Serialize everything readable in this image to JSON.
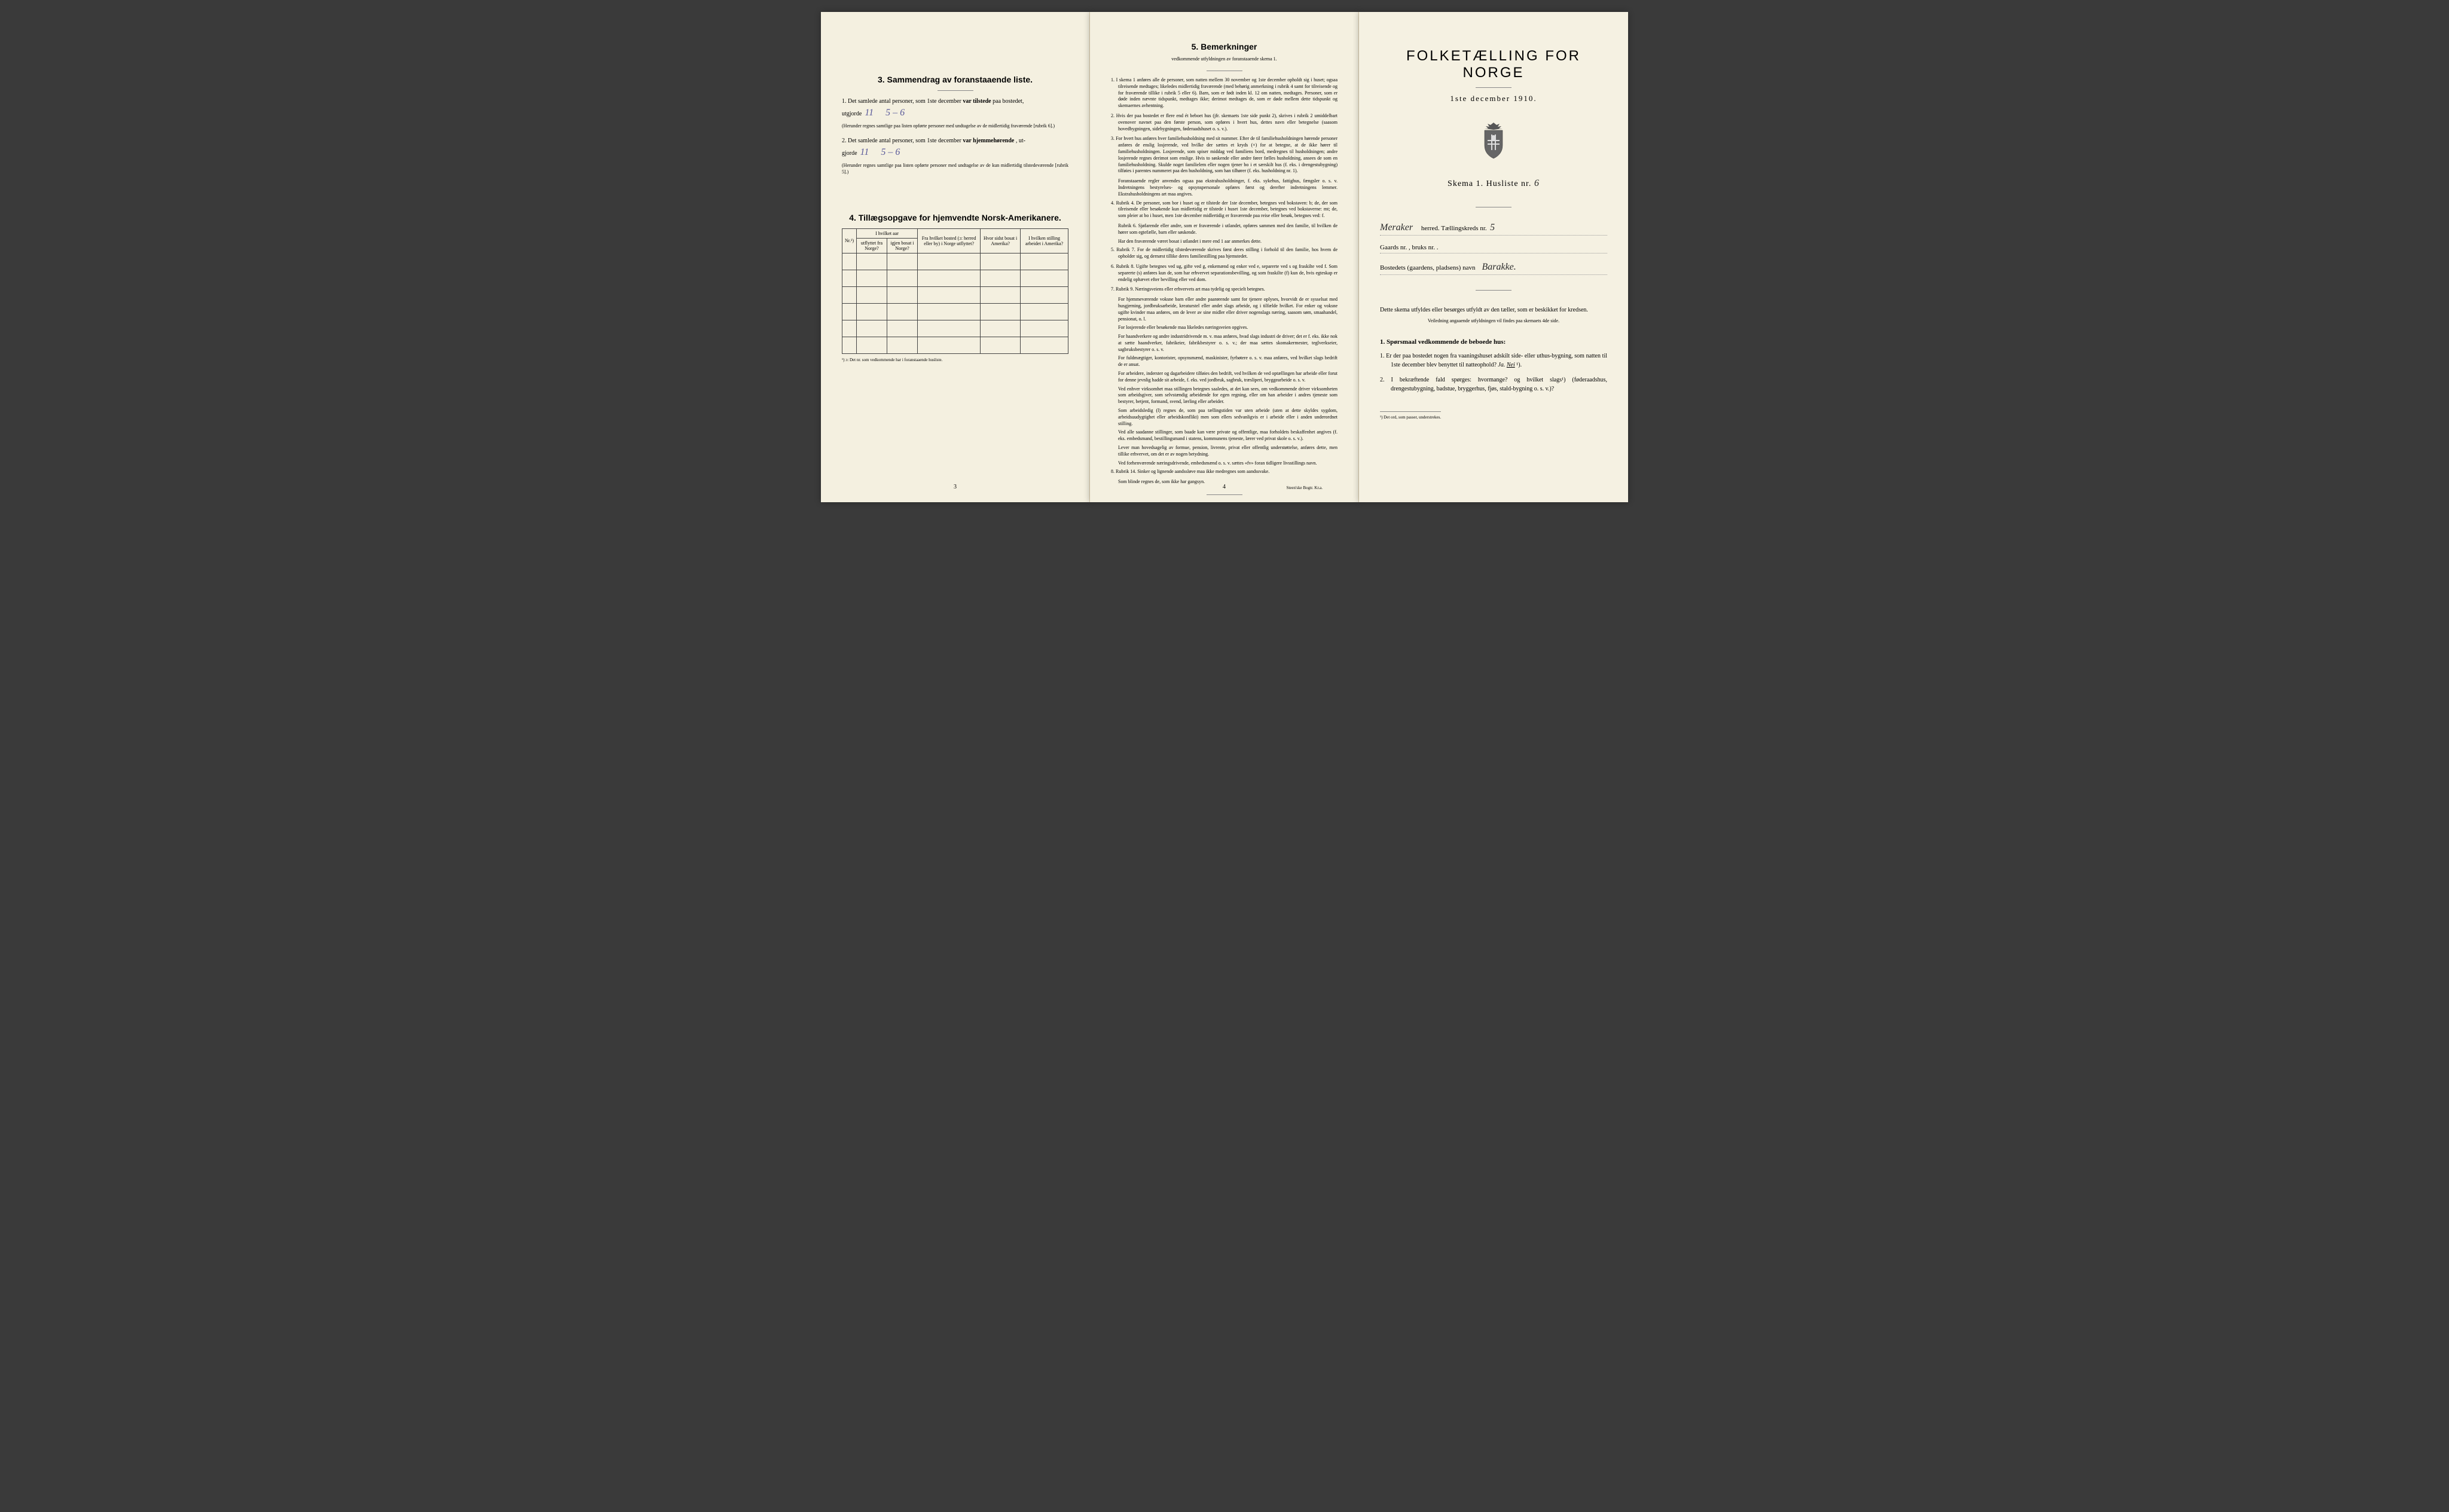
{
  "page1": {
    "section3_title": "3.  Sammendrag av foranstaaende liste.",
    "item1_pre": "1. Det samlede antal personer, som 1ste december",
    "item1_bold": "var tilstede",
    "item1_post": "paa bostedet,",
    "item1_line2": "utgjorde",
    "item1_hw1": "11",
    "item1_hw2": "5 – 6",
    "item1_fine": "(Herunder regnes samtlige paa listen opførte personer med undtagelse av de midlertidig fraværende [rubrik 6].)",
    "item2_pre": "2. Det samlede antal personer, som 1ste december",
    "item2_bold": "var hjemmehørende",
    "item2_post": ", ut-",
    "item2_line2": "gjorde",
    "item2_hw1": "11",
    "item2_hw2": "5 – 6",
    "item2_fine": "(Herunder regnes samtlige paa listen opførte personer med undtagelse av de kun midlertidig tilstedeværende [rubrik 5].)",
    "section4_title": "4.  Tillægsopgave for hjemvendte Norsk-Amerikanere.",
    "table": {
      "col1": "Nr.¹)",
      "col2a": "I hvilket aar",
      "col2b": "utflyttet fra Norge?",
      "col2c": "igjen bosat i Norge?",
      "col3": "Fra hvilket bosted (ɔ: herred eller by) i Norge utflyttet?",
      "col4": "Hvor sidst bosat i Amerika?",
      "col5": "I hvilken stilling arbeidet i Amerika?"
    },
    "table_footnote": "¹) ɔ: Det nr. som vedkommende har i foranstaaende husliste.",
    "pagenum": "3"
  },
  "page2": {
    "title": "5.  Bemerkninger",
    "subtitle": "vedkommende utfyldningen av foranstaaende skema 1.",
    "r1": "1. I skema 1 anføres alle de personer, som natten mellem 30 november og 1ste december opholdt sig i huset; ogsaa tilreisende medtages; likeledes midlertidig fraværende (med behørig anmerkning i rubrik 4 samt for tilreisende og for fraværende tillike i rubrik 5 eller 6). Barn, som er født inden kl. 12 om natten, medtages. Personer, som er døde inden nævnte tidspunkt, medtages ikke; derimot medtages de, som er døde mellem dette tidspunkt og skemaernes avhentning.",
    "r2": "2. Hvis der paa bostedet er flere end ét beboet hus (jfr. skemaets 1ste side punkt 2), skrives i rubrik 2 umiddelbart ovenover navnet paa den første person, som opføres i hvert hus, dettes navn eller betegnelse (saasom hovedbygningen, sidebygningen, føderaadshuset o. s. v.).",
    "r3": "3. For hvert hus anføres hver familiehusholdning med sit nummer. Efter de til familiehusholdningen hørende personer anføres de enslig losjerende, ved hvilke der sættes et kryds (×) for at betegne, at de ikke hører til familiehusholdningen. Losjerende, som spiser middag ved familiens bord, medregnes til husholdningen; andre losjerende regnes derimot som enslige. Hvis to søskende eller andre fører fælles husholdning, ansees de som en familiehusholdning. Skulde noget familielem eller nogen tjener bo i et særskilt hus (f. eks. i drengestubygning) tilføies i parentes nummeret paa den husholdning, som han tilhører (f. eks. husholdning nr. 1).",
    "r3b": "Foranstaaende regler anvendes ogsaa paa ekstrahusholdninger, f. eks. sykehus, fattighus, fængsler o. s. v. Indretningens bestyrelses- og opsynspersonale opføres først og derefter indretningens lemmer. Ekstrahusholdningens art maa angives.",
    "r4": "4. Rubrik 4. De personer, som bor i huset og er tilstede der 1ste december, betegnes ved bokstaven: b; de, der som tilreisende eller besøkende kun midlertidig er tilstede i huset 1ste december, betegnes ved bokstaverne: mt; de, som pleier at bo i huset, men 1ste december midlertidig er fraværende paa reise eller besøk, betegnes ved: f.",
    "r4b": "Rubrik 6. Sjøfarende eller andre, som er fraværende i utlandet, opføres sammen med den familie, til hvilken de hører som egtefælle, barn eller søskende.",
    "r4c": "Har den fraværende været bosat i utlandet i mere end 1 aar anmerkes dette.",
    "r5": "5. Rubrik 7. For de midlertidig tilstedeværende skrives først deres stilling i forhold til den familie, hos hvem de opholder sig, og dernæst tillike deres familiestilling paa hjemstedet.",
    "r6": "6. Rubrik 8. Ugifte betegnes ved ug, gifte ved g, enkemænd og enker ved e, separerte ved s og fraskilte ved f. Som separerte (s) anføres kun de, som har erhvervet separationsbevilling, og som fraskilte (f) kun de, hvis egteskap er endelig ophævet efter bevilling eller ved dom.",
    "r7": "7. Rubrik 9. Næringsveiens eller erhvervets art maa tydelig og specielt betegnes.",
    "r7b": "For hjemmeværende voksne barn eller andre paarørende samt for tjenere oplyses, hvorvidt de er sysselsat med husgjerning, jordbruksarbeide, kreaturstel eller andet slags arbeide, og i tilfælde hvilket. For enker og voksne ugifte kvinder maa anføres, om de lever av sine midler eller driver nogenslags næring, saasom søm, smaahandel, pensionat, o. l.",
    "r7c": "For losjerende eller besøkende maa likeledes næringsveien opgives.",
    "r7d": "For haandverkere og andre industridrivende m. v. maa anføres, hvad slags industri de driver; det er f. eks. ikke nok at sætte haandverker, fabrikeier, fabrikbestyrer o. s. v.; der maa sættes skomakermester, teglverkseier, sagbruksbestyrer o. s. v.",
    "r7e": "For fuldmægtiger, kontorister, opsynsmænd, maskinister, fyrbøtere o. s. v. maa anføres, ved hvilket slags bedrift de er ansat.",
    "r7f": "For arbeidere, inderster og dagarbeidere tilføies den bedrift, ved hvilken de ved optællingen har arbeide eller forut for denne jevnlig hadde sit arbeide, f. eks. ved jordbruk, sagbruk, træsliperi, bryggearbeide o. s. v.",
    "r7g": "Ved enhver virksomhet maa stillingen betegnes saaledes, at det kan sees, om vedkommende driver virksomheten som arbeidsgiver, som selvstændig arbeidende for egen regning, eller om han arbeider i andres tjeneste som bestyrer, betjent, formand, svend, lærling eller arbeider.",
    "r7h": "Som arbeidsledig (l) regnes de, som paa tællingstiden var uten arbeide (uten at dette skyldes sygdom, arbeidsuudygtighet eller arbeidskonflikt) men som ellers sedvanligvis er i arbeide eller i anden underordnet stilling.",
    "r7i": "Ved alle saadanne stillinger, som baade kan være private og offentlige, maa forholdets beskaffenhet angives (f. eks. embedsmand, bestillingsmand i statens, kommunens tjeneste, lærer ved privat skole o. s. v.).",
    "r7j": "Lever man hovedsagelig av formue, pension, livrente, privat eller offentlig understøttelse, anføres dette, men tillike erhvervet, om det er av nogen betydning.",
    "r7k": "Ved forhenværende næringsdrivende, embedsmænd o. s. v. sættes «fv» foran tidligere livsstillings navn.",
    "r8": "8. Rubrik 14. Sinker og lignende aandssløve maa ikke medregnes som aandssvake.",
    "r8b": "Som blinde regnes de, som ikke har gangsyn.",
    "pagenum": "4",
    "printer": "Steen'ske Bogtr. Kr.a."
  },
  "page3": {
    "title": "FOLKETÆLLING FOR NORGE",
    "date": "1ste december 1910.",
    "skema": "Skema 1.  Husliste nr.",
    "skema_hw": "6",
    "herred_hw": "Meraker",
    "herred_label": "herred.  Tællingskreds nr.",
    "kreds_hw": "5",
    "gaards": "Gaards nr.        ,  bruks nr.        .",
    "bosted_label": "Bostedets (gaardens, pladsens) navn",
    "bosted_hw": "Barakke.",
    "intro": "Dette skema utfyldes eller besørges utfyldt av den tæller, som er beskikket for kredsen.",
    "intro_sub": "Veiledning angaaende utfyldningen vil findes paa skemaets 4de side.",
    "q_header": "1. Spørsmaal vedkommende de beboede hus:",
    "q1": "1. Er der paa bostedet nogen fra vaaningshuset adskilt side- eller uthus-bygning, som natten til 1ste december blev benyttet til natteophold?   Ja.   Nei ¹).",
    "q2": "2. I bekræftende fald spørges: hvormange?         og hvilket slags¹) (føderaadshus, drengestubygning, badstue, bryggerhus, fjøs, stald-bygning o. s. v.)?",
    "footnote": "¹) Det ord, som passer, understrekes."
  }
}
